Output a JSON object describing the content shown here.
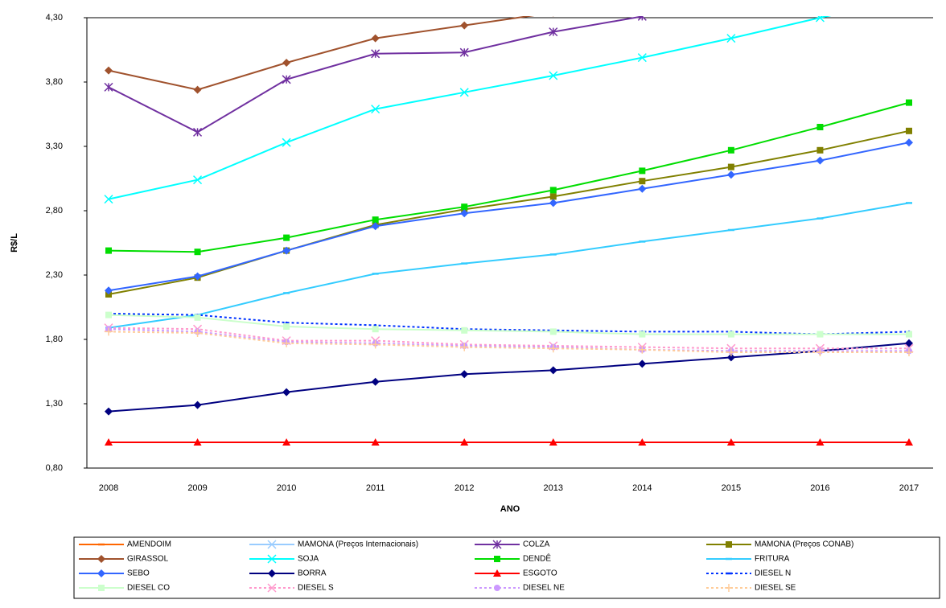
{
  "chart_data": {
    "type": "line",
    "x_label": "ANO",
    "y_label": "R$/L",
    "categories": [
      "2008",
      "2009",
      "2010",
      "2011",
      "2012",
      "2013",
      "2014",
      "2015",
      "2016",
      "2017"
    ],
    "ylim": [
      0.8,
      4.3
    ],
    "yticks": [
      {
        "value": 0.8,
        "label": "0,80"
      },
      {
        "value": 1.3,
        "label": "1,30"
      },
      {
        "value": 1.8,
        "label": "1,80"
      },
      {
        "value": 2.3,
        "label": "2,30"
      },
      {
        "value": 2.8,
        "label": "2,80"
      },
      {
        "value": 3.3,
        "label": "3,30"
      },
      {
        "value": 3.8,
        "label": "3,80"
      },
      {
        "value": 4.3,
        "label": "4,30"
      }
    ],
    "grid": false,
    "legend": "bottom",
    "series": [
      {
        "name": "AMENDOIM",
        "color": "#ff6600",
        "marker": "none",
        "dash": "solid",
        "values": [
          null,
          null,
          null,
          null,
          null,
          null,
          null,
          null,
          null,
          null
        ]
      },
      {
        "name": "MAMONA (Preços Internacionais)",
        "color": "#99ccff",
        "marker": "x",
        "dash": "solid",
        "values": [
          null,
          null,
          null,
          null,
          null,
          null,
          null,
          null,
          null,
          null
        ]
      },
      {
        "name": "COLZA",
        "color": "#7030a0",
        "marker": "star",
        "dash": "solid",
        "values": [
          3.76,
          3.41,
          3.82,
          4.02,
          4.03,
          4.19,
          4.31,
          null,
          null,
          null
        ]
      },
      {
        "name": "MAMONA (Preços CONAB)",
        "color": "#808000",
        "marker": "square",
        "dash": "solid",
        "values": [
          2.15,
          2.28,
          2.49,
          2.69,
          2.81,
          2.91,
          3.03,
          3.14,
          3.27,
          3.42
        ]
      },
      {
        "name": "GIRASSOL",
        "color": "#a0522d",
        "marker": "diamond",
        "dash": "solid",
        "values": [
          3.89,
          3.74,
          3.95,
          4.14,
          4.24,
          4.34,
          null,
          null,
          null,
          null
        ]
      },
      {
        "name": "SOJA",
        "color": "#00ffff",
        "marker": "x",
        "dash": "solid",
        "values": [
          2.89,
          3.04,
          3.33,
          3.59,
          3.72,
          3.85,
          3.99,
          4.14,
          4.3,
          4.45
        ]
      },
      {
        "name": "DENDÊ",
        "color": "#00dd00",
        "marker": "square",
        "dash": "solid",
        "values": [
          2.49,
          2.48,
          2.59,
          2.73,
          2.83,
          2.96,
          3.11,
          3.27,
          3.45,
          3.64
        ]
      },
      {
        "name": "FRITURA",
        "color": "#33ccff",
        "marker": "dash",
        "dash": "solid",
        "values": [
          1.89,
          1.99,
          2.16,
          2.31,
          2.39,
          2.46,
          2.56,
          2.65,
          2.74,
          2.86
        ]
      },
      {
        "name": "SEBO",
        "color": "#3366ff",
        "marker": "diamond",
        "dash": "solid",
        "values": [
          2.18,
          2.29,
          2.49,
          2.68,
          2.78,
          2.86,
          2.97,
          3.08,
          3.19,
          3.33
        ]
      },
      {
        "name": "BORRA",
        "color": "#000080",
        "marker": "diamond",
        "dash": "solid",
        "values": [
          1.24,
          1.29,
          1.39,
          1.47,
          1.53,
          1.56,
          1.61,
          1.66,
          1.71,
          1.77
        ]
      },
      {
        "name": "ESGOTO",
        "color": "#ff0000",
        "marker": "triangle",
        "dash": "solid",
        "values": [
          1.0,
          1.0,
          1.0,
          1.0,
          1.0,
          1.0,
          1.0,
          1.0,
          1.0,
          1.0
        ]
      },
      {
        "name": "DIESEL N",
        "color": "#0033ff",
        "marker": "none",
        "dash": "dotted",
        "values": [
          2.0,
          1.99,
          1.93,
          1.91,
          1.88,
          1.87,
          1.86,
          1.86,
          1.84,
          1.86
        ]
      },
      {
        "name": "DIESEL CO",
        "color": "#ccffcc",
        "marker": "square",
        "dash": "solid",
        "values": [
          1.99,
          1.97,
          1.9,
          1.88,
          1.87,
          1.86,
          1.84,
          1.84,
          1.84,
          1.84
        ]
      },
      {
        "name": "DIESEL S",
        "color": "#ff99cc",
        "marker": "x",
        "dash": "dotted",
        "values": [
          1.89,
          1.88,
          1.79,
          1.79,
          1.76,
          1.75,
          1.74,
          1.73,
          1.73,
          1.73
        ]
      },
      {
        "name": "DIESEL NE",
        "color": "#cc99ff",
        "marker": "circle",
        "dash": "dotted",
        "values": [
          1.88,
          1.86,
          1.78,
          1.77,
          1.75,
          1.74,
          1.72,
          1.71,
          1.71,
          1.71
        ]
      },
      {
        "name": "DIESEL SE",
        "color": "#ffcc99",
        "marker": "plus",
        "dash": "dotted",
        "values": [
          1.86,
          1.85,
          1.77,
          1.76,
          1.74,
          1.73,
          1.72,
          1.7,
          1.7,
          1.7
        ]
      }
    ]
  }
}
